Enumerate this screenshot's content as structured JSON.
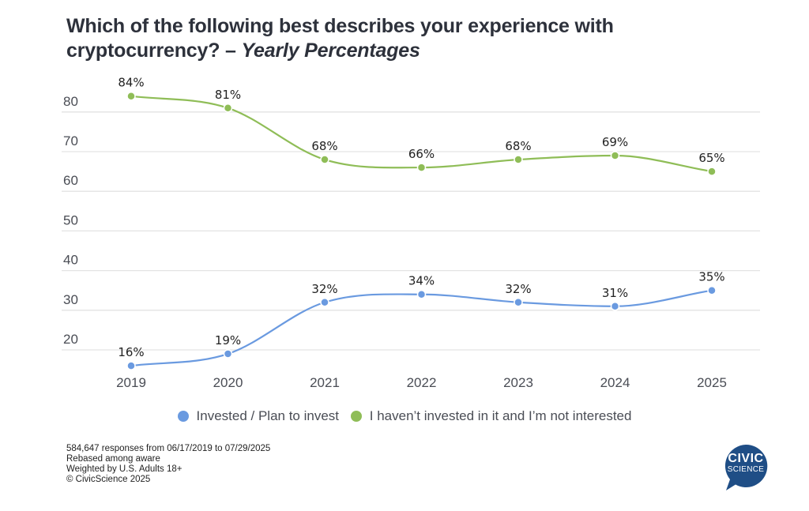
{
  "title": {
    "main": "Which of the following best describes your experience with cryptocurrency?",
    "separator": " – ",
    "subtitle": "Yearly Percentages"
  },
  "chart_data": {
    "type": "line",
    "title": "Which of the following best describes your experience with cryptocurrency? – Yearly Percentages",
    "xlabel": "",
    "ylabel": "",
    "x": [
      "2019",
      "2020",
      "2021",
      "2022",
      "2023",
      "2024",
      "2025"
    ],
    "yticks": [
      20,
      30,
      40,
      50,
      60,
      70,
      80
    ],
    "ylim": [
      14,
      86
    ],
    "grid": true,
    "legend_position": "bottom",
    "series": [
      {
        "name": "Invested / Plan to invest",
        "color": "#6a9ae0",
        "values": [
          16,
          19,
          32,
          34,
          32,
          31,
          35
        ],
        "labels": [
          "16%",
          "19%",
          "32%",
          "34%",
          "32%",
          "31%",
          "35%"
        ]
      },
      {
        "name": "I haven’t invested in it and I’m not interested",
        "color": "#8fbd57",
        "values": [
          84,
          81,
          68,
          66,
          68,
          69,
          65
        ],
        "labels": [
          "84%",
          "81%",
          "68%",
          "66%",
          "68%",
          "69%",
          "65%"
        ]
      }
    ]
  },
  "legend": {
    "items": [
      {
        "label": "Invested / Plan to invest",
        "color": "#6a9ae0"
      },
      {
        "label": "I haven’t invested in it and I’m not interested",
        "color": "#8fbd57"
      }
    ]
  },
  "footnote": {
    "lines": [
      "584,647 responses from 06/17/2019 to 07/29/2025",
      "Rebased among aware",
      "Weighted by U.S. Adults 18+",
      "© CivicScience 2025"
    ]
  },
  "logo": {
    "line1": "CIVIC",
    "line2": "SCIENCE",
    "color": "#1f4e86"
  }
}
